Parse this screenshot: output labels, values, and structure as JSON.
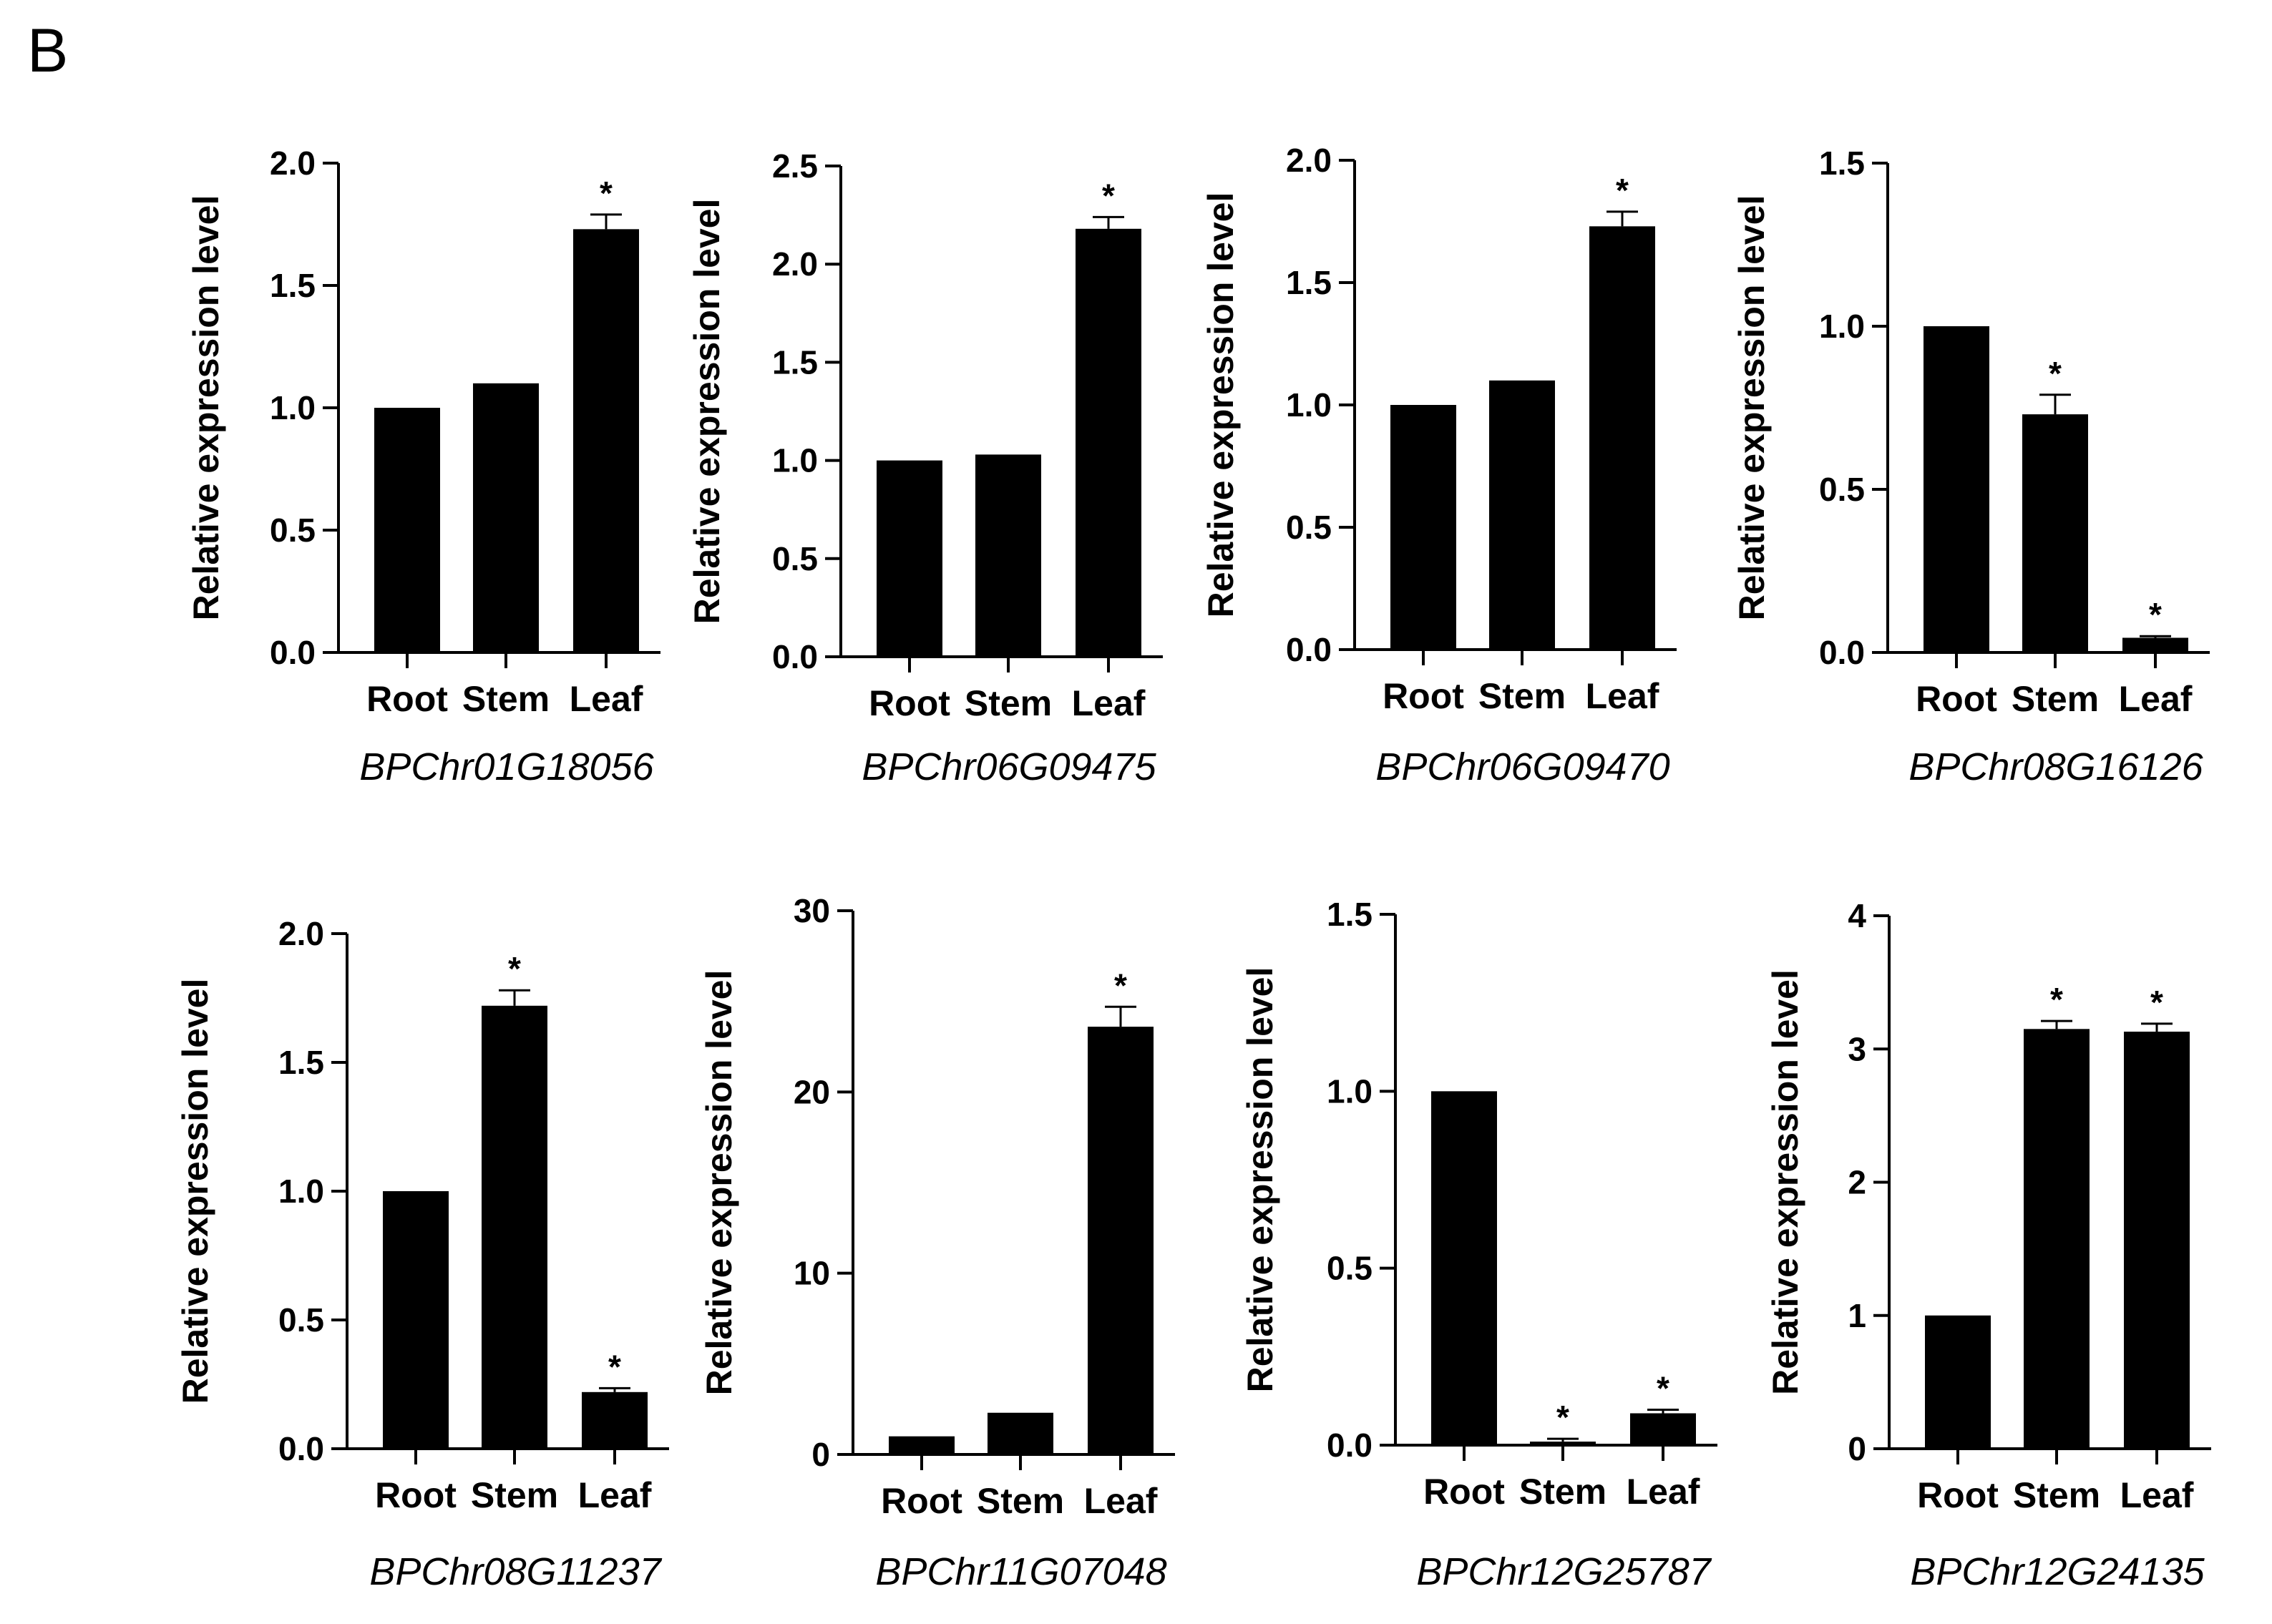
{
  "panel_label": "B",
  "chart_data": [
    {
      "type": "bar",
      "title": "BPChr01G18056",
      "ylabel": "Relative expression level",
      "categories": [
        "Root",
        "Stem",
        "Leaf"
      ],
      "values": [
        1.0,
        1.1,
        1.73
      ],
      "errors": [
        0,
        0,
        0.06
      ],
      "significance": [
        "",
        "",
        "*"
      ],
      "ylim": [
        0,
        2.0
      ],
      "yticks": [
        "0.0",
        "0.5",
        "1.0",
        "1.5",
        "2.0"
      ]
    },
    {
      "type": "bar",
      "title": "BPChr06G09475",
      "ylabel": "Relative expression level",
      "categories": [
        "Root",
        "Stem",
        "Leaf"
      ],
      "values": [
        1.0,
        1.03,
        2.18
      ],
      "errors": [
        0,
        0,
        0.06
      ],
      "significance": [
        "",
        "",
        "*"
      ],
      "ylim": [
        0,
        2.5
      ],
      "yticks": [
        "0.0",
        "0.5",
        "1.0",
        "1.5",
        "2.0",
        "2.5"
      ]
    },
    {
      "type": "bar",
      "title": "BPChr06G09470",
      "ylabel": "Relative expression level",
      "categories": [
        "Root",
        "Stem",
        "Leaf"
      ],
      "values": [
        1.0,
        1.1,
        1.73
      ],
      "errors": [
        0,
        0,
        0.06
      ],
      "significance": [
        "",
        "",
        "*"
      ],
      "ylim": [
        0,
        2.0
      ],
      "yticks": [
        "0.0",
        "0.5",
        "1.0",
        "1.5",
        "2.0"
      ]
    },
    {
      "type": "bar",
      "title": "BPChr08G16126",
      "ylabel": "Relative expression level",
      "categories": [
        "Root",
        "Stem",
        "Leaf"
      ],
      "values": [
        1.0,
        0.73,
        0.045
      ],
      "errors": [
        0,
        0.06,
        0.005
      ],
      "significance": [
        "",
        "*",
        "*"
      ],
      "ylim": [
        0,
        1.5
      ],
      "yticks": [
        "0.0",
        "0.5",
        "1.0",
        "1.5"
      ]
    },
    {
      "type": "bar",
      "title": "BPChr08G11237",
      "ylabel": "Relative expression level",
      "categories": [
        "Root",
        "Stem",
        "Leaf"
      ],
      "values": [
        1.0,
        1.72,
        0.22
      ],
      "errors": [
        0,
        0.06,
        0.015
      ],
      "significance": [
        "",
        "*",
        "*"
      ],
      "ylim": [
        0,
        2.0
      ],
      "yticks": [
        "0.0",
        "0.5",
        "1.0",
        "1.5",
        "2.0"
      ]
    },
    {
      "type": "bar",
      "title": "BPChr11G07048",
      "ylabel": "Relative expression level",
      "categories": [
        "Root",
        "Stem",
        "Leaf"
      ],
      "values": [
        1.0,
        2.3,
        23.6
      ],
      "errors": [
        0,
        0,
        1.1
      ],
      "significance": [
        "",
        "",
        "*"
      ],
      "ylim": [
        0,
        30
      ],
      "yticks": [
        "0",
        "10",
        "20",
        "30"
      ]
    },
    {
      "type": "bar",
      "title": "BPChr12G25787",
      "ylabel": "Relative expression level",
      "categories": [
        "Root",
        "Stem",
        "Leaf"
      ],
      "values": [
        1.0,
        0.01,
        0.09
      ],
      "errors": [
        0,
        0.008,
        0.01
      ],
      "significance": [
        "",
        "*",
        "*"
      ],
      "ylim": [
        0,
        1.5
      ],
      "yticks": [
        "0.0",
        "0.5",
        "1.0",
        "1.5"
      ]
    },
    {
      "type": "bar",
      "title": "BPChr12G24135",
      "ylabel": "Relative expression level",
      "categories": [
        "Root",
        "Stem",
        "Leaf"
      ],
      "values": [
        1.0,
        3.15,
        3.13
      ],
      "errors": [
        0,
        0.06,
        0.06
      ],
      "significance": [
        "",
        "*",
        "*"
      ],
      "ylim": [
        0,
        4
      ],
      "yticks": [
        "0",
        "1",
        "2",
        "3",
        "4"
      ]
    }
  ]
}
